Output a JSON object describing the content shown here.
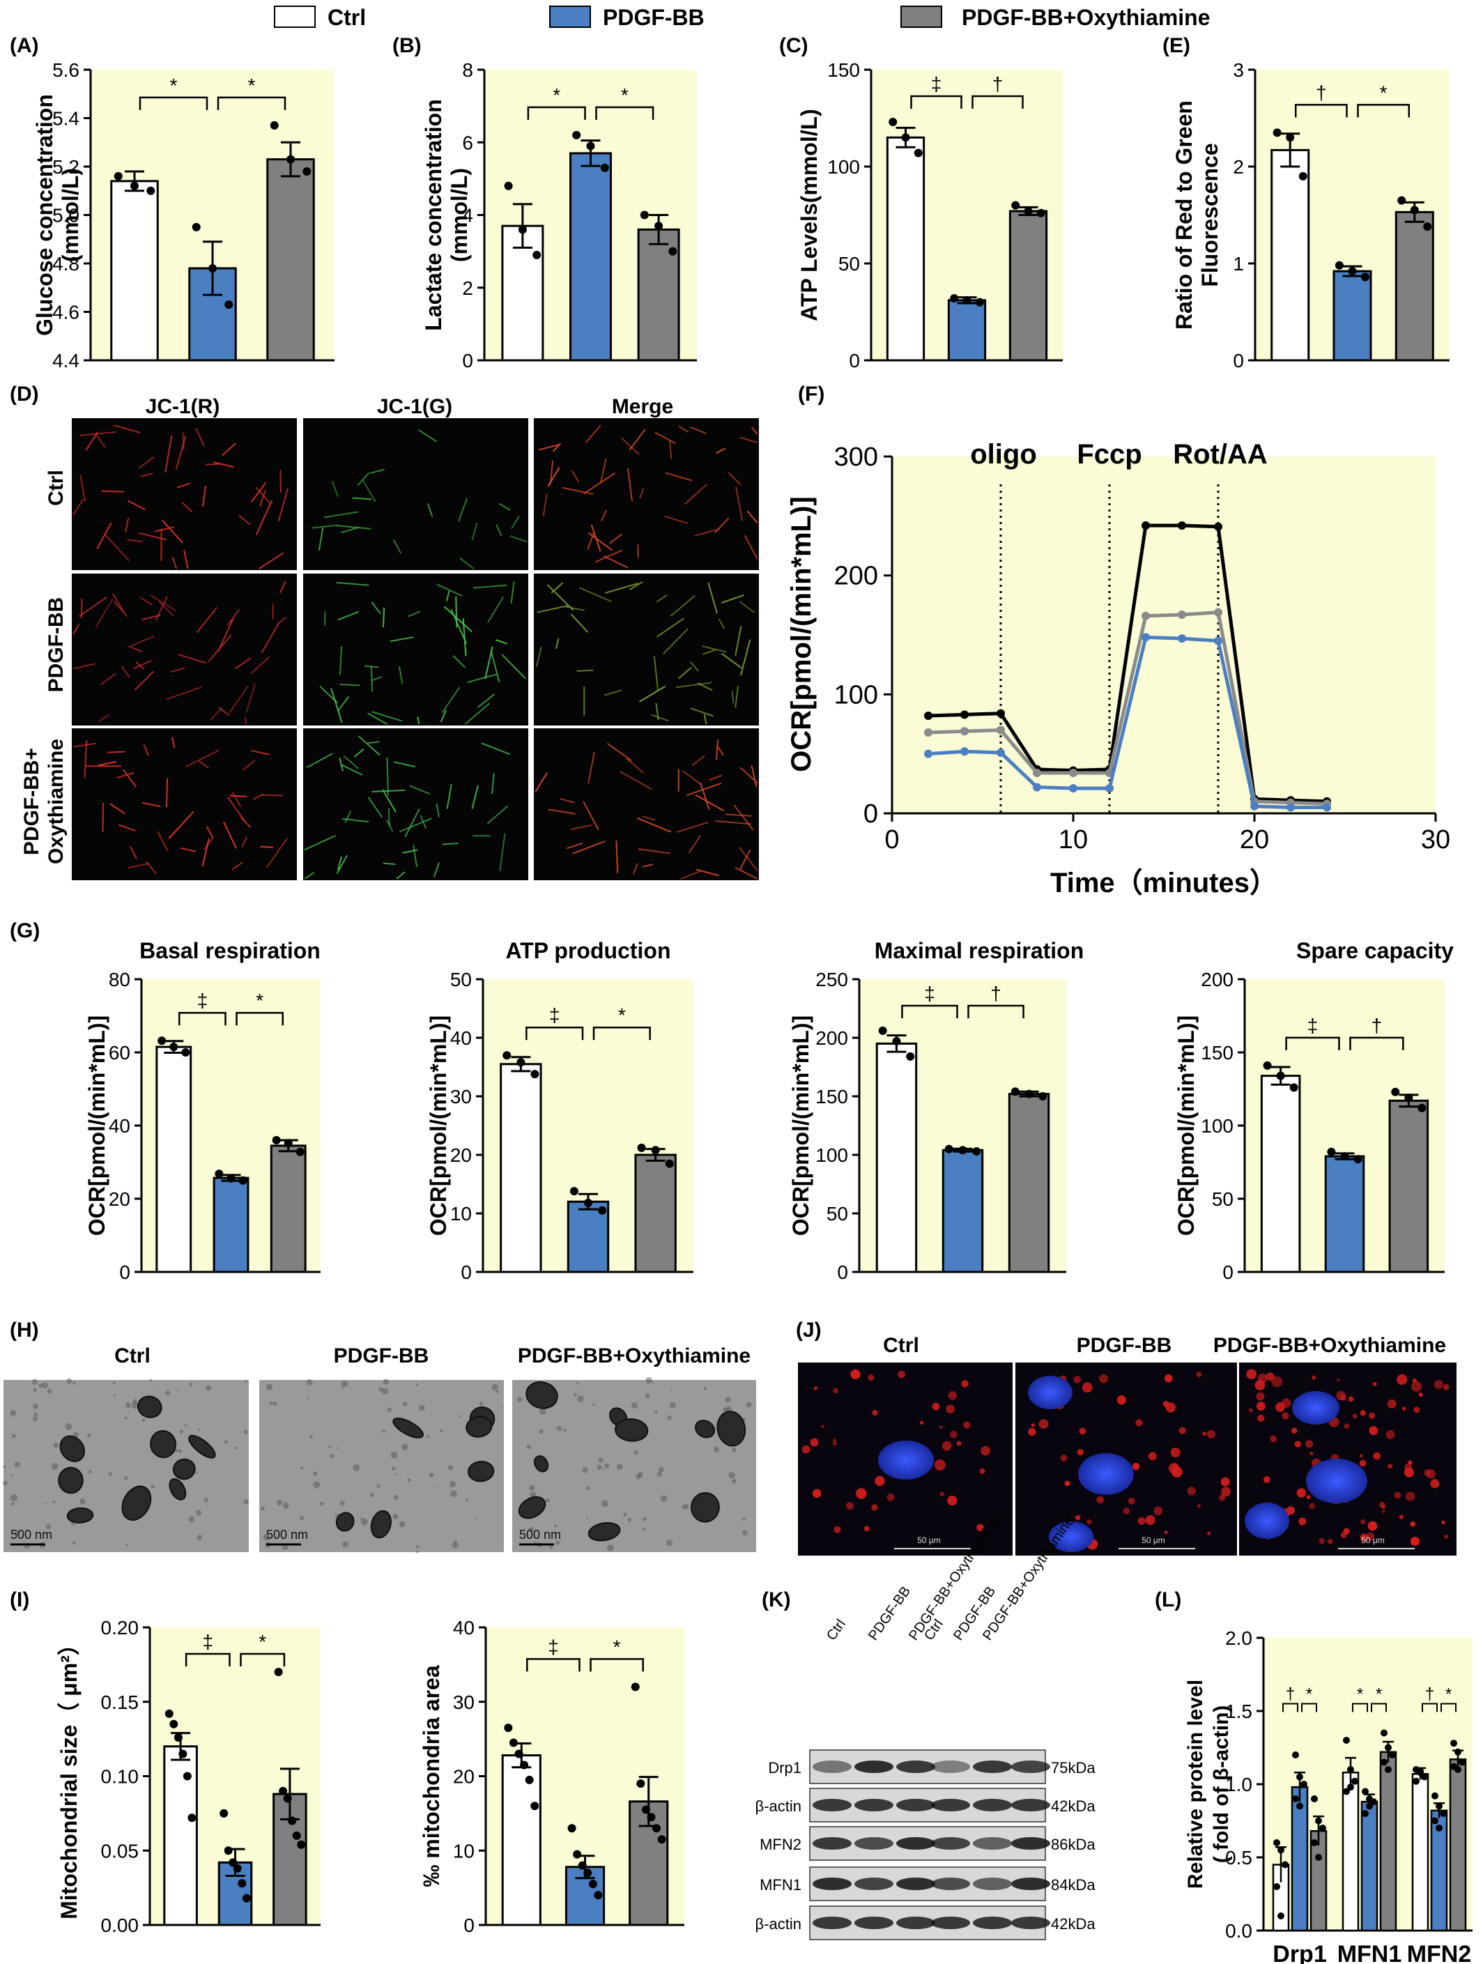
{
  "colors": {
    "panel_bg": "#fbfbd6",
    "ctrl": "#ffffff",
    "pdgf": "#4a7fc1",
    "oxy": "#808080",
    "line_ctrl": "#000000",
    "line_oxy": "#8a8a8a",
    "line_pdgf": "#4a7fc1"
  },
  "legend": {
    "items": [
      {
        "label": "Ctrl",
        "color": "#ffffff"
      },
      {
        "label": "PDGF-BB",
        "color": "#4a7fc1"
      },
      {
        "label": "PDGF-BB+Oxythiamine",
        "color": "#808080"
      }
    ]
  },
  "bar_panels": [
    {
      "id": "A",
      "letter": "(A)",
      "ylabel": [
        "Glucose concentration",
        "(mmol/L)"
      ],
      "ylim": [
        4.4,
        5.6
      ],
      "ticks": [
        "4.4",
        "4.6",
        "4.8",
        "5.0",
        "5.2",
        "5.4",
        "5.6"
      ],
      "groups": [
        ""
      ],
      "values": [
        5.14,
        4.78,
        5.23
      ],
      "errors": [
        0.04,
        0.11,
        0.07
      ],
      "points": [
        [
          5.16,
          5.12,
          5.1
        ],
        [
          4.95,
          4.78,
          4.63
        ],
        [
          5.37,
          5.23,
          5.18
        ]
      ],
      "sig": [
        "*",
        "*"
      ]
    },
    {
      "id": "B",
      "letter": "(B)",
      "ylabel": [
        "Lactate concentration",
        "(mmol/L)"
      ],
      "ylim": [
        0,
        8
      ],
      "ticks": [
        "0",
        "2",
        "4",
        "6",
        "8"
      ],
      "values": [
        3.7,
        5.7,
        3.6
      ],
      "errors": [
        0.6,
        0.35,
        0.4
      ],
      "points": [
        [
          4.8,
          3.6,
          2.9
        ],
        [
          6.2,
          5.9,
          5.3
        ],
        [
          4.0,
          3.7,
          3.0
        ]
      ],
      "sig": [
        "*",
        "*"
      ]
    },
    {
      "id": "C",
      "letter": "(C)",
      "ylabel": [
        "ATP Levels(mmol/L)"
      ],
      "ylim": [
        0,
        150
      ],
      "ticks": [
        "0",
        "50",
        "100",
        "150"
      ],
      "values": [
        115,
        31,
        77
      ],
      "errors": [
        5,
        1.5,
        2
      ],
      "points": [
        [
          123,
          115,
          107
        ],
        [
          32,
          31,
          30
        ],
        [
          80,
          77,
          76
        ]
      ],
      "sig": [
        "‡",
        "†"
      ]
    },
    {
      "id": "E",
      "letter": "(E)",
      "ylabel": [
        "Ratio of Red to Green",
        "Fluorescence"
      ],
      "ylim": [
        0,
        3
      ],
      "ticks": [
        "0",
        "1",
        "2",
        "3"
      ],
      "values": [
        2.17,
        0.92,
        1.53
      ],
      "errors": [
        0.17,
        0.05,
        0.1
      ],
      "points": [
        [
          2.35,
          2.3,
          1.9
        ],
        [
          0.98,
          0.92,
          0.86
        ],
        [
          1.65,
          1.55,
          1.38
        ]
      ],
      "sig": [
        "†",
        "*"
      ]
    },
    {
      "id": "G1",
      "letter": "(G)",
      "title": "Basal respiration",
      "ylabel": [
        "OCR[pmol/(min*mL)]"
      ],
      "ylim": [
        0,
        80
      ],
      "ticks": [
        "0",
        "20",
        "40",
        "60",
        "80"
      ],
      "values": [
        61.5,
        25.7,
        34.5
      ],
      "errors": [
        1.6,
        0.8,
        1.5
      ],
      "points": [
        [
          63.2,
          61.5,
          60.0
        ],
        [
          26.8,
          25.6,
          25.0
        ],
        [
          36.0,
          35.2,
          32.8
        ]
      ],
      "sig": [
        "‡",
        "*"
      ]
    },
    {
      "id": "G2",
      "letter": "",
      "title": "ATP production",
      "ylabel": [
        "OCR[pmol/(min*mL)]"
      ],
      "ylim": [
        0,
        50
      ],
      "ticks": [
        "0",
        "10",
        "20",
        "30",
        "40",
        "50"
      ],
      "values": [
        35.5,
        12.0,
        20.0
      ],
      "errors": [
        1.2,
        1.3,
        1.0
      ],
      "points": [
        [
          37.0,
          35.8,
          33.8
        ],
        [
          13.8,
          11.8,
          10.5
        ],
        [
          21.2,
          20.8,
          18.5
        ]
      ],
      "sig": [
        "‡",
        "*"
      ]
    },
    {
      "id": "G3",
      "letter": "",
      "title": "Maximal respiration",
      "ylabel": [
        "OCR[pmol/(min*mL)]"
      ],
      "ylim": [
        0,
        250
      ],
      "ticks": [
        "0",
        "50",
        "100",
        "150",
        "200",
        "250"
      ],
      "values": [
        195,
        104,
        152
      ],
      "errors": [
        7,
        1.2,
        2
      ],
      "points": [
        [
          206,
          197,
          184
        ],
        [
          105,
          104,
          103
        ],
        [
          154,
          152,
          150
        ]
      ],
      "sig": [
        "‡",
        "†"
      ]
    },
    {
      "id": "G4",
      "letter": "",
      "title": "Spare capacity",
      "ylabel": [
        "OCR[pmol/(min*mL)]"
      ],
      "ylim": [
        0,
        200
      ],
      "ticks": [
        "0",
        "50",
        "100",
        "150",
        "200"
      ],
      "values": [
        134,
        79,
        117
      ],
      "errors": [
        6,
        2,
        4
      ],
      "points": [
        [
          141,
          134,
          126
        ],
        [
          82,
          79,
          77
        ],
        [
          123,
          119,
          112
        ]
      ],
      "sig": [
        "‡",
        "†"
      ]
    },
    {
      "id": "I1",
      "letter": "(I)",
      "ylabel": [
        "Mitochondrial size（ μm²）"
      ],
      "ylim": [
        0,
        0.2
      ],
      "ticks": [
        "0.00",
        "0.05",
        "0.10",
        "0.15",
        "0.20"
      ],
      "values": [
        0.12,
        0.042,
        0.088
      ],
      "errors": [
        0.009,
        0.009,
        0.017
      ],
      "points": [
        [
          0.142,
          0.135,
          0.126,
          0.115,
          0.1,
          0.072
        ],
        [
          0.075,
          0.05,
          0.042,
          0.038,
          0.028,
          0.018
        ],
        [
          0.17,
          0.09,
          0.085,
          0.07,
          0.06,
          0.054
        ]
      ],
      "sig": [
        "‡",
        "*"
      ]
    },
    {
      "id": "I2",
      "letter": "",
      "ylabel": [
        "‰ mitochondria area"
      ],
      "ylim": [
        0,
        40
      ],
      "ticks": [
        "0",
        "10",
        "20",
        "30",
        "40"
      ],
      "values": [
        22.8,
        7.8,
        16.6
      ],
      "errors": [
        1.6,
        1.5,
        3.3
      ],
      "points": [
        [
          26.5,
          24.5,
          23.0,
          21.5,
          19.5,
          16.0
        ],
        [
          13.0,
          9.5,
          8.0,
          7.0,
          5.5,
          4.0
        ],
        [
          32.0,
          19.0,
          15.5,
          14.5,
          13.0,
          11.5
        ]
      ],
      "sig": [
        "‡",
        "*"
      ]
    }
  ],
  "panel_D": {
    "letter": "(D)",
    "cols": [
      "JC-1(R)",
      "JC-1(G)",
      "Merge"
    ],
    "rows": [
      "Ctrl",
      "PDGF-BB",
      "PDGF-BB+\nOxythiamine"
    ],
    "row_lines": [
      [
        "Ctrl"
      ],
      [
        "PDGF-BB"
      ],
      [
        "PDGF-BB+",
        "Oxythiamine"
      ]
    ]
  },
  "panel_F": {
    "letter": "(F)",
    "ylabel": "OCR[pmol/(min*mL)]",
    "xlabel": "Time（minutes）",
    "markers": [
      "oligo",
      "Fccp",
      "Rot/AA"
    ],
    "xticks": [
      "0",
      "10",
      "20",
      "30"
    ],
    "yticks": [
      "0",
      "100",
      "200",
      "300"
    ],
    "chart_data": {
      "type": "line",
      "x": [
        2,
        4,
        6,
        8,
        10,
        12,
        14,
        16,
        18,
        20,
        22,
        24
      ],
      "xlim": [
        0,
        30
      ],
      "ylim": [
        0,
        300
      ],
      "series": [
        {
          "name": "",
          "color": "#000000",
          "values": [
            82,
            83,
            84,
            37,
            36,
            37,
            242,
            242,
            241,
            12,
            11,
            10
          ]
        },
        {
          "name": "",
          "color": "#8a8a8a",
          "values": [
            68,
            69,
            70,
            34,
            34,
            34,
            166,
            167,
            169,
            10,
            9,
            8
          ]
        },
        {
          "name": "",
          "color": "#4a7fc1",
          "values": [
            50,
            52,
            51,
            22,
            21,
            21,
            148,
            147,
            145,
            6,
            5,
            5
          ]
        }
      ],
      "vlines": [
        6,
        12,
        18
      ]
    }
  },
  "panel_H": {
    "letter": "(H)",
    "labels": [
      "Ctrl",
      "PDGF-BB",
      "PDGF-BB+Oxythiamine"
    ],
    "scale": "500 nm"
  },
  "panel_J": {
    "letter": "(J)",
    "labels": [
      "Ctrl",
      "PDGF-BB",
      "PDGF-BB+Oxythiamine"
    ],
    "scale": "50 μm"
  },
  "panel_K": {
    "letter": "(K)",
    "lanes": [
      "Ctrl",
      "PDGF-BB",
      "PDGF-BB+Oxythiamine",
      "Ctrl",
      "PDGF-BB",
      "PDGF-BB+Oxythiamine"
    ],
    "bands": [
      {
        "name": "Drp1",
        "kda": "75kDa",
        "intensity": [
          0.5,
          0.85,
          0.8,
          0.45,
          0.8,
          0.75
        ]
      },
      {
        "name": "β-actin",
        "kda": "42kDa",
        "intensity": [
          0.8,
          0.8,
          0.8,
          0.8,
          0.8,
          0.8
        ]
      },
      {
        "name": "MFN2",
        "kda": "86kDa",
        "intensity": [
          0.8,
          0.7,
          0.85,
          0.75,
          0.6,
          0.85
        ]
      },
      {
        "name": "MFN1",
        "kda": "84kDa",
        "intensity": [
          0.85,
          0.75,
          0.85,
          0.7,
          0.6,
          0.85
        ]
      },
      {
        "name": "β-actin",
        "kda": "42kDa",
        "intensity": [
          0.8,
          0.8,
          0.8,
          0.8,
          0.8,
          0.8
        ]
      }
    ]
  },
  "panel_L": {
    "letter": "(L)",
    "ylabel": [
      "Relative protein level",
      "( fold of β-actin)"
    ],
    "yticks": [
      "0.0",
      "0.5",
      "1.0",
      "1.5",
      "2.0"
    ],
    "chart_data": {
      "type": "bar",
      "categories": [
        "Drp1",
        "MFN1",
        "MFN2"
      ],
      "ylim": [
        0,
        2
      ],
      "series": [
        {
          "name": "Ctrl",
          "values": [
            0.45,
            1.08,
            1.07
          ],
          "errors": [
            0.12,
            0.1,
            0.04
          ]
        },
        {
          "name": "PDGF-BB",
          "values": [
            0.98,
            0.88,
            0.82
          ],
          "errors": [
            0.1,
            0.05,
            0.05
          ]
        },
        {
          "name": "PDGF-BB+Oxythiamine",
          "values": [
            0.68,
            1.22,
            1.17
          ],
          "errors": [
            0.1,
            0.07,
            0.06
          ]
        }
      ],
      "points": [
        [
          [
            0.6,
            0.55,
            0.45,
            0.3,
            0.1
          ],
          [
            1.3,
            1.1,
            1.02,
            0.95,
            0.98
          ],
          [
            1.1,
            1.08,
            1.05,
            1.02,
            1.09
          ]
        ],
        [
          [
            1.2,
            1.05,
            1.0,
            0.9,
            0.85
          ],
          [
            0.95,
            0.9,
            0.88,
            0.8,
            0.85
          ],
          [
            0.92,
            0.85,
            0.8,
            0.75,
            0.7
          ]
        ],
        [
          [
            0.9,
            0.75,
            0.7,
            0.6,
            0.5
          ],
          [
            1.35,
            1.25,
            1.2,
            1.15,
            1.1
          ],
          [
            1.28,
            1.22,
            1.15,
            1.12,
            1.1
          ]
        ]
      ],
      "sig": [
        [
          "†",
          "*"
        ],
        [
          "*",
          "*"
        ],
        [
          "†",
          "*"
        ]
      ]
    }
  }
}
